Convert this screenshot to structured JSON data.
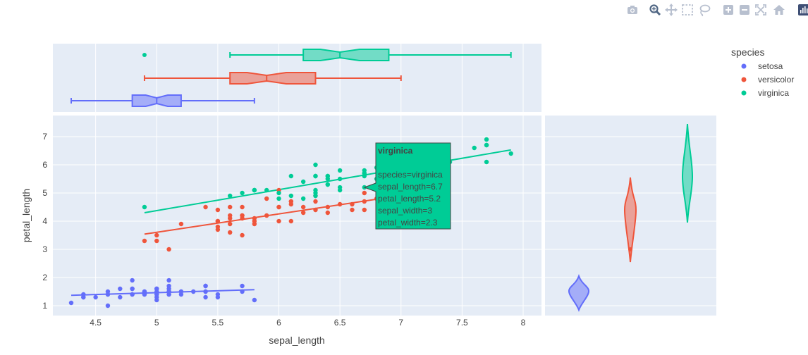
{
  "toolbar": {
    "buttons": [
      {
        "name": "camera-icon",
        "tip": "Download plot as a png"
      },
      {
        "name": "zoom-icon",
        "tip": "Zoom"
      },
      {
        "name": "pan-icon",
        "tip": "Pan"
      },
      {
        "name": "box-select-icon",
        "tip": "Box Select"
      },
      {
        "name": "lasso-select-icon",
        "tip": "Lasso Select"
      },
      {
        "name": "zoom-in-icon",
        "tip": "Zoom in"
      },
      {
        "name": "zoom-out-icon",
        "tip": "Zoom out"
      },
      {
        "name": "autoscale-icon",
        "tip": "Autoscale"
      },
      {
        "name": "reset-axes-icon",
        "tip": "Reset axes"
      },
      {
        "name": "plotly-logo-icon",
        "tip": "Produced with Plotly"
      }
    ]
  },
  "colors": {
    "setosa": "#636efa",
    "versicolor": "#EF553B",
    "virginica": "#00cc96",
    "plot_bg": "#E5ECF6",
    "grid": "#ffffff",
    "text": "#444444"
  },
  "chart_data": {
    "type": "scatter",
    "title": "",
    "xlabel": "sepal_length",
    "ylabel": "petal_length",
    "xlim": [
      4.15,
      8.15
    ],
    "ylim": [
      0.65,
      7.75
    ],
    "xticks": [
      "4.5",
      "5",
      "5.5",
      "6",
      "6.5",
      "7",
      "7.5",
      "8"
    ],
    "yticks": [
      "1",
      "2",
      "3",
      "4",
      "5",
      "6",
      "7"
    ],
    "grid": true,
    "legend": {
      "title": "species",
      "position": "top-right"
    },
    "series": [
      {
        "name": "setosa",
        "x": [
          5.1,
          4.9,
          4.7,
          4.6,
          5.0,
          5.4,
          4.6,
          5.0,
          4.4,
          4.9,
          5.4,
          4.8,
          4.8,
          4.3,
          5.8,
          5.7,
          5.4,
          5.1,
          5.7,
          5.1,
          5.4,
          5.1,
          4.6,
          5.1,
          4.8,
          5.0,
          5.0,
          5.2,
          5.2,
          4.7,
          4.8,
          5.4,
          5.2,
          5.5,
          4.9,
          5.0,
          5.5,
          4.9,
          4.4,
          5.1,
          5.0,
          4.5,
          4.4,
          5.0,
          5.1,
          4.8,
          5.1,
          4.6,
          5.3,
          5.0
        ],
        "y": [
          1.4,
          1.4,
          1.3,
          1.5,
          1.4,
          1.7,
          1.4,
          1.5,
          1.4,
          1.5,
          1.5,
          1.6,
          1.4,
          1.1,
          1.2,
          1.5,
          1.3,
          1.4,
          1.7,
          1.5,
          1.7,
          1.5,
          1.0,
          1.7,
          1.9,
          1.6,
          1.6,
          1.5,
          1.4,
          1.6,
          1.6,
          1.5,
          1.5,
          1.4,
          1.5,
          1.2,
          1.3,
          1.4,
          1.3,
          1.5,
          1.3,
          1.3,
          1.3,
          1.6,
          1.9,
          1.4,
          1.6,
          1.4,
          1.5,
          1.4
        ],
        "trend": {
          "x": [
            4.3,
            5.8
          ],
          "y": [
            1.37,
            1.57
          ]
        },
        "box": {
          "min": 4.3,
          "q1": 4.8,
          "median": 5.0,
          "q3": 5.2,
          "max": 5.8,
          "notch": [
            4.91,
            5.09
          ],
          "outliers": []
        },
        "violin": {
          "min": 0.85,
          "max": 2.05,
          "median": 1.5
        }
      },
      {
        "name": "versicolor",
        "x": [
          7.0,
          6.4,
          6.9,
          5.5,
          6.5,
          5.7,
          6.3,
          4.9,
          6.6,
          5.2,
          5.0,
          5.9,
          6.0,
          6.1,
          5.6,
          6.7,
          5.6,
          5.8,
          6.2,
          5.6,
          5.9,
          6.1,
          6.3,
          6.1,
          6.4,
          6.6,
          6.8,
          6.7,
          6.0,
          5.7,
          5.5,
          5.5,
          5.8,
          6.0,
          5.4,
          6.0,
          6.7,
          6.3,
          5.6,
          5.5,
          5.5,
          6.1,
          5.8,
          5.0,
          5.6,
          5.7,
          5.7,
          6.2,
          5.1,
          5.7
        ],
        "y": [
          4.7,
          4.5,
          4.9,
          4.0,
          4.6,
          4.5,
          4.7,
          3.3,
          4.6,
          3.9,
          3.5,
          4.2,
          4.0,
          4.7,
          3.6,
          4.4,
          4.5,
          4.1,
          4.5,
          3.9,
          4.8,
          4.0,
          4.9,
          4.7,
          4.3,
          4.4,
          4.8,
          5.0,
          4.5,
          3.5,
          3.8,
          3.7,
          3.9,
          5.1,
          4.5,
          4.5,
          4.7,
          4.4,
          4.1,
          4.0,
          4.4,
          4.6,
          4.0,
          3.3,
          4.2,
          4.2,
          4.2,
          4.3,
          3.0,
          4.1
        ],
        "trend": {
          "x": [
            4.9,
            7.0
          ],
          "y": [
            3.54,
            4.91
          ]
        },
        "box": {
          "min": 4.9,
          "q1": 5.6,
          "median": 5.9,
          "q3": 6.3,
          "max": 7.0,
          "notch": [
            5.74,
            6.06
          ],
          "outliers": []
        },
        "violin": {
          "min": 2.55,
          "max": 5.55,
          "median": 4.35
        }
      },
      {
        "name": "virginica",
        "x": [
          6.3,
          5.8,
          7.1,
          6.3,
          6.5,
          7.6,
          4.9,
          7.3,
          6.7,
          7.2,
          6.5,
          6.4,
          6.8,
          5.7,
          5.8,
          6.4,
          6.5,
          7.7,
          7.7,
          6.0,
          6.9,
          5.6,
          7.7,
          6.3,
          6.7,
          7.2,
          6.2,
          6.1,
          6.4,
          7.2,
          7.4,
          7.9,
          6.4,
          6.3,
          6.1,
          7.7,
          6.3,
          6.4,
          6.0,
          6.9,
          6.7,
          6.9,
          5.8,
          6.8,
          6.7,
          6.7,
          6.3,
          6.5,
          6.2,
          5.9
        ],
        "y": [
          6.0,
          5.1,
          5.9,
          5.6,
          5.8,
          6.6,
          4.5,
          6.3,
          5.8,
          6.1,
          5.1,
          5.3,
          5.5,
          5.0,
          5.1,
          5.3,
          5.5,
          6.7,
          6.9,
          5.0,
          5.7,
          4.9,
          6.7,
          4.9,
          5.7,
          6.0,
          4.8,
          4.9,
          5.6,
          5.8,
          6.1,
          6.4,
          5.6,
          5.1,
          5.6,
          6.1,
          5.6,
          5.5,
          4.8,
          5.4,
          5.6,
          5.1,
          5.1,
          5.9,
          5.7,
          5.2,
          5.0,
          5.2,
          5.4,
          5.1
        ],
        "trend": {
          "x": [
            4.9,
            7.9
          ],
          "y": [
            4.3,
            6.53
          ]
        },
        "box": {
          "min": 5.6,
          "q1": 6.2,
          "median": 6.5,
          "q3": 6.9,
          "max": 7.9,
          "notch": [
            6.34,
            6.66
          ],
          "outliers": [
            4.9
          ]
        },
        "violin": {
          "min": 3.95,
          "max": 7.45,
          "median": 5.55
        }
      }
    ],
    "hover": {
      "series": "virginica",
      "title": "virginica",
      "lines": [
        "species=virginica",
        "sepal_length=6.7",
        "petal_length=5.2",
        "sepal_width=3",
        "petal_width=2.3"
      ],
      "x": 6.7,
      "y": 5.2
    }
  }
}
